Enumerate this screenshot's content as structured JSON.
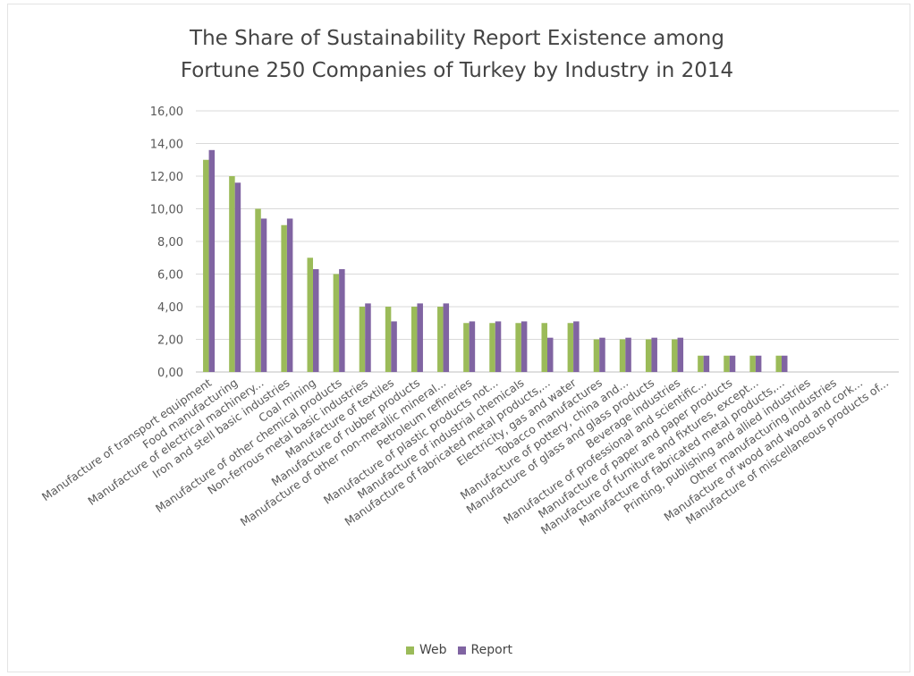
{
  "chart_data": {
    "type": "bar",
    "title_lines": [
      "The Share of Sustainability Report Existence among",
      "Fortune 250 Companies  of Turkey  by Industry in 2014"
    ],
    "categories": [
      "Manufacture of transport equipment",
      "Food manufacturing",
      "Manufacture of electrical machinery...",
      "Iron and stell basic industries",
      "Coal mining",
      "Manufacture of other chemical products",
      "Non-ferrous metal basic industries",
      "Manufacture of textiles",
      "Manufacture of rubber products",
      "Manufacture of other non-metallic mineral...",
      "Petroleum refineries",
      "Manufacture of plastic products not...",
      "Manufacture of industrial chemicals",
      "Manufacture of fabricated metal products,...",
      "Electricity, gas and water",
      "Tobacco manufactures",
      "Manufacture of pottery, china and...",
      "Manufacture of glass and glass products",
      "Beverage industries",
      "Manufacture of professional and scientific...",
      "Manufacture of paper and paper products",
      "Manufacture of furniture and fixtures, except...",
      "Manufacture of fabricated metal products,...",
      "Printing, publishing and allied industries",
      "Other manufacturing industries",
      "Manufacture of wood and wood and cork...",
      "Manufacture of miscellaneous products of..."
    ],
    "series": [
      {
        "name": "Web",
        "color": "#9bbb59",
        "values": [
          13,
          12,
          10,
          9,
          7,
          6,
          4,
          4,
          4,
          4,
          3,
          3,
          3,
          3,
          3,
          2,
          2,
          2,
          2,
          1,
          1,
          1,
          1,
          0,
          0,
          0,
          0
        ]
      },
      {
        "name": "Report",
        "color": "#8064a2",
        "values": [
          13.6,
          11.6,
          9.4,
          9.4,
          6.3,
          6.3,
          4.2,
          3.1,
          4.2,
          4.2,
          3.1,
          3.1,
          3.1,
          2.1,
          3.1,
          2.1,
          2.1,
          2.1,
          2.1,
          1.0,
          1.0,
          1.0,
          1.0,
          0,
          0,
          0,
          0
        ]
      }
    ],
    "yticks": [
      "0,00",
      "2,00",
      "4,00",
      "6,00",
      "8,00",
      "10,00",
      "12,00",
      "14,00",
      "16,00"
    ],
    "ylim": [
      0,
      16
    ],
    "grid": true,
    "legend_position": "bottom"
  }
}
